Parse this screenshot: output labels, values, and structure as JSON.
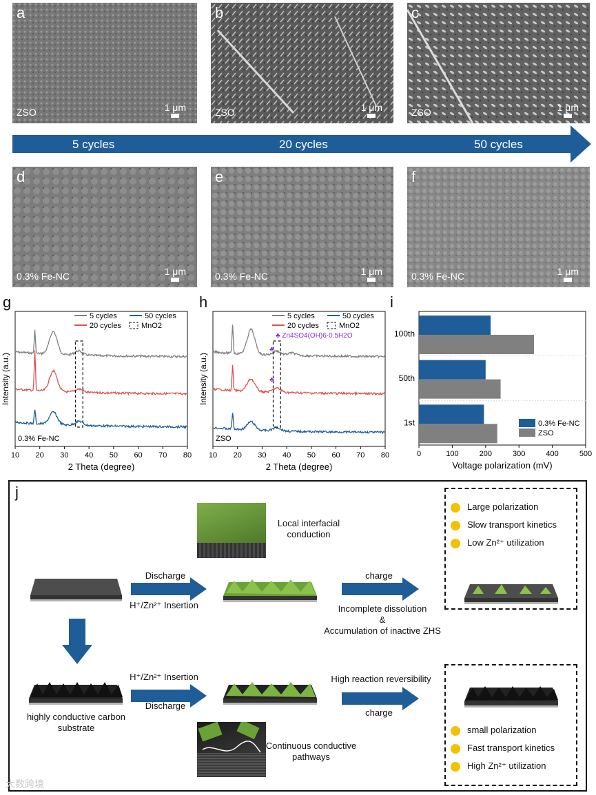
{
  "panels": {
    "a": {
      "letter": "a",
      "label": "ZSO",
      "scale": "1 μm"
    },
    "b": {
      "letter": "b",
      "label": "ZSO",
      "scale": "1 μm"
    },
    "c": {
      "letter": "c",
      "label": "ZSO",
      "scale": "1 μm"
    },
    "d": {
      "letter": "d",
      "label": "0.3% Fe-NC",
      "scale": "1 μm"
    },
    "e": {
      "letter": "e",
      "label": "0.3% Fe-NC",
      "scale": "1 μm"
    },
    "f": {
      "letter": "f",
      "label": "0.3% Fe-NC",
      "scale": "1 μm"
    }
  },
  "arrow": {
    "labels": [
      "5 cycles",
      "20 cycles",
      "50 cycles"
    ],
    "color": "#1f5d99"
  },
  "chart_letters": {
    "g": "g",
    "h": "h",
    "i": "i"
  },
  "chart_data": [
    {
      "type": "line",
      "panel": "g",
      "xlabel": "2 Theta (degree)",
      "ylabel": "Intensity (a.u.)",
      "xlim": [
        10,
        80
      ],
      "xticks": [
        10,
        20,
        30,
        40,
        50,
        60,
        70,
        80
      ],
      "annotation": "0.3% Fe-NC",
      "legend": [
        "5 cycles",
        "20 cycles",
        "50 cycles",
        "MnO2"
      ],
      "series": [
        {
          "name": "5 cycles",
          "color": "#808080",
          "peaks": [
            [
              18,
              0.55
            ],
            [
              25.5,
              0.55
            ],
            [
              35.8,
              0.1
            ]
          ]
        },
        {
          "name": "20 cycles",
          "color": "#d9534f",
          "peaks": [
            [
              18,
              0.95
            ],
            [
              25.5,
              0.5
            ],
            [
              36,
              0.08
            ]
          ]
        },
        {
          "name": "50 cycles",
          "color": "#1f5d99",
          "peaks": [
            [
              18,
              0.35
            ],
            [
              25.5,
              0.3
            ],
            [
              36,
              0.1
            ]
          ]
        }
      ]
    },
    {
      "type": "line",
      "panel": "h",
      "xlabel": "2 Theta (degree)",
      "ylabel": "Intensity (a.u.)",
      "xlim": [
        10,
        80
      ],
      "xticks": [
        10,
        20,
        30,
        40,
        50,
        60,
        70,
        80
      ],
      "annotation": "ZSO",
      "legend": [
        "5 cycles",
        "20 cycles",
        "50 cycles",
        "MnO2",
        "Zn4SO4(OH)6·0.5H2O"
      ],
      "series": [
        {
          "name": "5 cycles",
          "color": "#808080",
          "peaks": [
            [
              18,
              0.7
            ],
            [
              25.5,
              0.6
            ],
            [
              36,
              0.1
            ],
            [
              42,
              0.06
            ]
          ]
        },
        {
          "name": "20 cycles",
          "color": "#d9534f",
          "peaks": [
            [
              18,
              0.6
            ],
            [
              25.5,
              0.3
            ],
            [
              36,
              0.1
            ]
          ]
        },
        {
          "name": "50 cycles",
          "color": "#1f5d99",
          "peaks": [
            [
              18,
              0.4
            ],
            [
              25.5,
              0.2
            ],
            [
              36,
              0.08
            ]
          ]
        }
      ]
    },
    {
      "type": "bar",
      "panel": "i",
      "orientation": "horizontal",
      "categories": [
        "100th",
        "50th",
        "1st"
      ],
      "xlabel": "Voltage polarization (mV)",
      "xlim": [
        0,
        500
      ],
      "xticks": [
        0,
        100,
        200,
        300,
        400,
        500
      ],
      "series": [
        {
          "name": "0.3% Fe-NC",
          "color": "#1f5d99",
          "values": [
            215,
            200,
            195
          ]
        },
        {
          "name": "ZSO",
          "color": "#808080",
          "values": [
            345,
            245,
            235
          ]
        }
      ]
    }
  ],
  "schematic": {
    "letter": "j",
    "local_conduction": "Local interfacial conduction",
    "discharge": "Discharge",
    "insertion": "H⁺/Zn²⁺ Insertion",
    "charge": "charge",
    "incomplete": "Incomplete dissolution",
    "amp": "&",
    "accumulation": "Accumulation of inactive ZHS",
    "high_rev": "High reaction reversibility",
    "substrate": "highly conductive carbon substrate",
    "continuous": "Continuous conductive pathways",
    "bad": [
      "Large polarization",
      "Slow transport  kinetics",
      "Low Zn²⁺ utilization"
    ],
    "good": [
      "small polarization",
      "Fast transport  kinetics",
      "High Zn²⁺ utilization"
    ]
  },
  "watermark": "大数跨境"
}
